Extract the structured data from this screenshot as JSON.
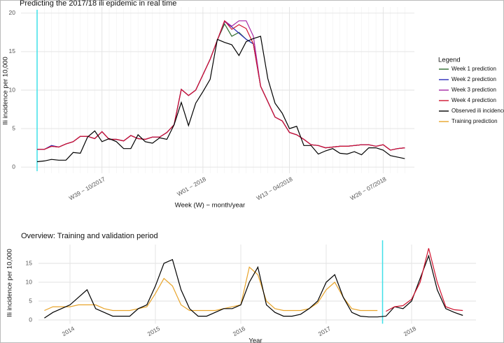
{
  "chart_data": [
    {
      "type": "line",
      "title": "Predicting the 2017/18 ili epidemic in real time",
      "x_label": "Week (W) − month/year",
      "y_label": "Ili incidence per 10,000",
      "categories": [
        null,
        null,
        null,
        null,
        null,
        null,
        null,
        null,
        null,
        "W39 − 10/2017",
        null,
        null,
        null,
        null,
        null,
        null,
        null,
        null,
        null,
        null,
        null,
        null,
        null,
        "W01 − 2018",
        null,
        null,
        null,
        null,
        null,
        null,
        null,
        null,
        null,
        null,
        null,
        "W13 − 04/2018",
        null,
        null,
        null,
        null,
        null,
        null,
        null,
        null,
        null,
        null,
        null,
        null,
        "W26 − 07/2018",
        null,
        null,
        null
      ],
      "ylim": [
        -0.8,
        20.8
      ],
      "yticks": [
        0,
        5,
        10,
        15,
        20
      ],
      "grid": true,
      "legend_title": "Legend",
      "legend": "right",
      "series": [
        {
          "name": "Week 1 prediction",
          "color": "#2e6b2e",
          "values": [
            2.3,
            2.3,
            2.7,
            2.6,
            3.0,
            3.3,
            4.0,
            4.0,
            3.7,
            4.6,
            3.6,
            3.6,
            3.4,
            4.1,
            3.7,
            3.6,
            3.9,
            3.9,
            4.5,
            5.5,
            10.1,
            9.3,
            10.0,
            12.0,
            14.0,
            16.5,
            18.6,
            17.0,
            17.5,
            16.6,
            16.0,
            10.5,
            8.5,
            6.5,
            6.0,
            4.5,
            4.2,
            3.6,
            2.9,
            2.8,
            2.5,
            2.6,
            2.7,
            2.7,
            2.8,
            2.9,
            2.9,
            2.7,
            2.9,
            2.2,
            2.4,
            2.5
          ]
        },
        {
          "name": "Week 2 prediction",
          "color": "#2a2ab8",
          "values": [
            2.3,
            2.3,
            2.8,
            2.6,
            3.0,
            3.3,
            4.0,
            4.0,
            3.7,
            4.6,
            3.6,
            3.6,
            3.4,
            4.1,
            3.7,
            3.6,
            3.9,
            3.9,
            4.5,
            5.5,
            10.1,
            9.3,
            10.0,
            12.0,
            14.0,
            16.5,
            18.9,
            18.2,
            17.4,
            16.6,
            16.0,
            10.5,
            8.5,
            6.5,
            6.0,
            4.5,
            4.2,
            3.6,
            2.9,
            2.8,
            2.5,
            2.6,
            2.7,
            2.7,
            2.8,
            2.9,
            2.9,
            2.7,
            2.9,
            2.2,
            2.4,
            2.5
          ]
        },
        {
          "name": "Week 3 prediction",
          "color": "#a526a5",
          "values": [
            2.3,
            2.3,
            2.7,
            2.6,
            3.0,
            3.3,
            4.0,
            4.0,
            3.7,
            4.6,
            3.6,
            3.6,
            3.4,
            4.1,
            3.7,
            3.6,
            3.9,
            3.9,
            4.5,
            5.5,
            10.1,
            9.3,
            10.0,
            12.0,
            14.0,
            16.5,
            19.0,
            18.3,
            19.0,
            19.0,
            17.0,
            10.5,
            8.5,
            6.5,
            6.0,
            4.5,
            4.2,
            3.6,
            2.9,
            2.8,
            2.5,
            2.6,
            2.7,
            2.7,
            2.8,
            2.9,
            2.9,
            2.7,
            2.9,
            2.2,
            2.4,
            2.5
          ]
        },
        {
          "name": "Week 4 prediction",
          "color": "#d0122e",
          "values": [
            2.3,
            2.3,
            2.7,
            2.6,
            3.0,
            3.3,
            4.0,
            4.0,
            3.7,
            4.6,
            3.6,
            3.6,
            3.4,
            4.1,
            3.7,
            3.6,
            3.9,
            3.9,
            4.5,
            5.5,
            10.1,
            9.3,
            10.0,
            12.0,
            14.0,
            16.5,
            19.0,
            17.9,
            18.5,
            18.0,
            16.0,
            10.5,
            8.5,
            6.5,
            6.0,
            4.5,
            4.2,
            3.6,
            2.9,
            2.8,
            2.5,
            2.6,
            2.7,
            2.7,
            2.8,
            2.9,
            2.9,
            2.7,
            2.9,
            2.2,
            2.4,
            2.5
          ]
        },
        {
          "name": "Observed ili incidence",
          "color": "#000000",
          "values": [
            0.7,
            0.8,
            1.0,
            0.9,
            0.9,
            1.9,
            1.8,
            3.9,
            4.7,
            3.3,
            3.7,
            3.3,
            2.4,
            2.4,
            4.2,
            3.3,
            3.1,
            3.8,
            3.6,
            5.5,
            8.4,
            5.4,
            8.3,
            9.8,
            11.4,
            16.6,
            16.2,
            15.9,
            14.5,
            16.3,
            16.7,
            17.0,
            11.5,
            8.3,
            7.0,
            5.0,
            5.3,
            2.8,
            2.8,
            1.7,
            2.1,
            2.4,
            1.8,
            1.7,
            2.0,
            1.6,
            2.5,
            2.5,
            2.2,
            1.5,
            1.3,
            1.1
          ]
        },
        {
          "name": "Training prediction",
          "color": "#e8a42a",
          "values": [
            null,
            null,
            null,
            null,
            null,
            null,
            null,
            null,
            null,
            null,
            null,
            null,
            null,
            null,
            null,
            null,
            null,
            null,
            null,
            null,
            null,
            null,
            null,
            null,
            null,
            null,
            null,
            null,
            null,
            null,
            null,
            null,
            null,
            null,
            null,
            null,
            null,
            null,
            null,
            null,
            null,
            null,
            null,
            null,
            null,
            null,
            null,
            null,
            null,
            null,
            null,
            null
          ]
        }
      ]
    },
    {
      "type": "line",
      "title": "Overview: Training and validation period",
      "x_label": "Year",
      "y_label": "Ili incidence per 10,000",
      "x": [
        2013.7,
        2013.8,
        2013.9,
        2014.0,
        2014.1,
        2014.2,
        2014.3,
        2014.4,
        2014.5,
        2014.6,
        2014.7,
        2014.8,
        2014.9,
        2015.0,
        2015.1,
        2015.2,
        2015.3,
        2015.4,
        2015.5,
        2015.6,
        2015.7,
        2015.8,
        2015.9,
        2016.0,
        2016.1,
        2016.2,
        2016.3,
        2016.4,
        2016.5,
        2016.6,
        2016.7,
        2016.8,
        2016.9,
        2017.0,
        2017.1,
        2017.2,
        2017.3,
        2017.4,
        2017.5,
        2017.6,
        2017.7,
        2017.8,
        2017.9,
        2018.0,
        2018.1,
        2018.2,
        2018.3,
        2018.4,
        2018.5,
        2018.6
      ],
      "xlim": [
        2013.6,
        2018.7
      ],
      "xticks": [
        2014,
        2015,
        2016,
        2017,
        2018
      ],
      "ylim": [
        -1,
        20
      ],
      "yticks": [
        0,
        5,
        10,
        15
      ],
      "grid": true,
      "vline_x": 2017.66,
      "vline_color": "#3fe0e8",
      "series": [
        {
          "color": "#e8a42a",
          "values": [
            2.5,
            3.5,
            3.5,
            3.5,
            4,
            4,
            4,
            3,
            2.5,
            2.5,
            2.5,
            3,
            3.5,
            7,
            11,
            9,
            4,
            2.5,
            2.5,
            2.5,
            2.5,
            3,
            3.5,
            4,
            14,
            12,
            5,
            3,
            2.5,
            2.5,
            2.5,
            3,
            4.5,
            8,
            10,
            6,
            3,
            2.5,
            2.5,
            2.5,
            null,
            null,
            null,
            null,
            null,
            null,
            null,
            null,
            null,
            null
          ]
        },
        {
          "color": "#000000",
          "values": [
            0.5,
            2,
            3,
            4,
            6,
            8,
            3,
            2,
            1,
            1,
            1,
            3,
            4,
            9,
            15,
            16,
            8,
            3,
            1,
            1,
            2,
            3,
            3,
            4,
            10,
            14,
            4,
            2,
            1,
            1,
            1.5,
            3,
            5,
            10,
            12,
            6,
            2,
            1,
            0.8,
            0.8,
            1,
            3.5,
            3,
            5,
            11,
            17,
            8,
            3,
            2,
            1.2
          ]
        },
        {
          "color": "#d0122e",
          "values": [
            null,
            null,
            null,
            null,
            null,
            null,
            null,
            null,
            null,
            null,
            null,
            null,
            null,
            null,
            null,
            null,
            null,
            null,
            null,
            null,
            null,
            null,
            null,
            null,
            null,
            null,
            null,
            null,
            null,
            null,
            null,
            null,
            null,
            null,
            null,
            null,
            null,
            null,
            null,
            null,
            2.3,
            3.5,
            3.8,
            5.5,
            10,
            19,
            10,
            3.5,
            2.7,
            2.5
          ]
        }
      ]
    }
  ]
}
